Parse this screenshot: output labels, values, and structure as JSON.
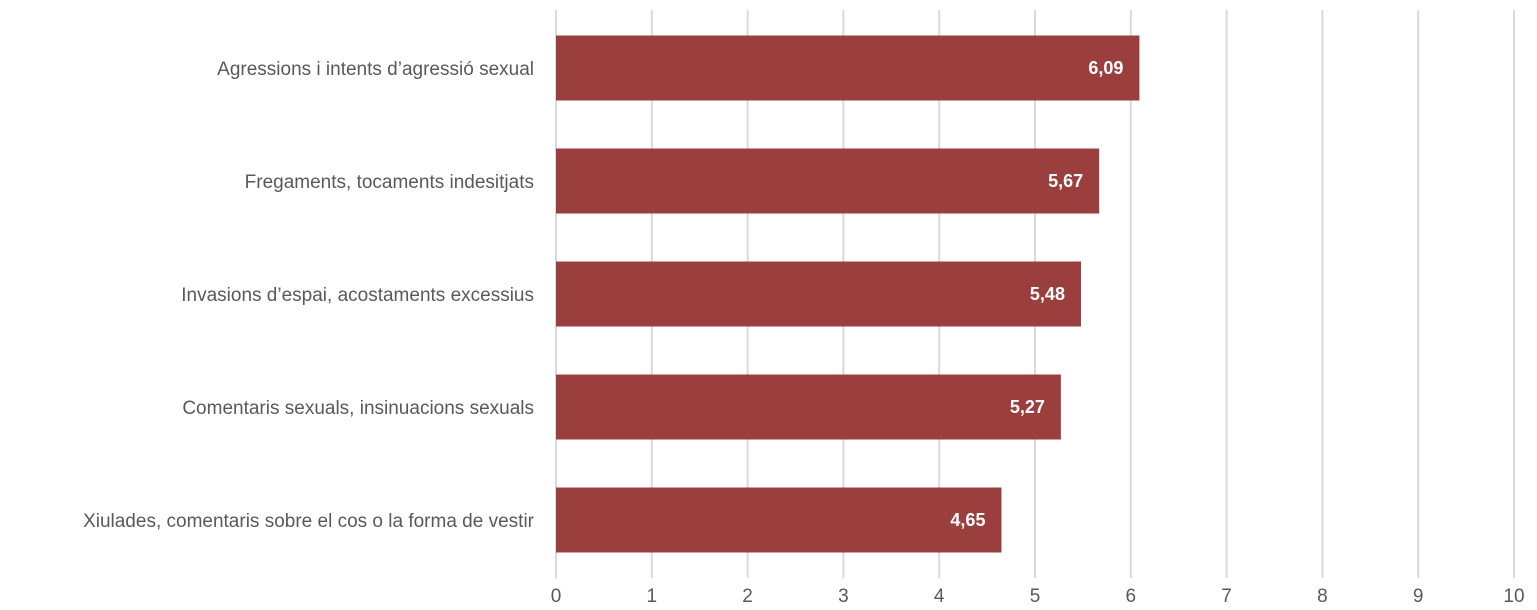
{
  "chart_data": {
    "type": "bar",
    "orientation": "horizontal",
    "categories": [
      "Agressions i intents d’agressió sexual",
      "Fregaments, tocaments indesitjats",
      "Invasions d’espai, acostaments excessius",
      "Comentaris sexuals, insinuacions sexuals",
      "Xiulades, comentaris sobre el cos o la forma de vestir"
    ],
    "values": [
      6.09,
      5.67,
      5.48,
      5.27,
      4.65
    ],
    "data_labels": [
      "6,09",
      "5,67",
      "5,48",
      "5,27",
      "4,65"
    ],
    "xlim": [
      0,
      10
    ],
    "x_ticks": [
      0,
      1,
      2,
      3,
      4,
      5,
      6,
      7,
      8,
      9,
      10
    ],
    "x_tick_labels": [
      "0",
      "1",
      "2",
      "3",
      "4",
      "5",
      "6",
      "7",
      "8",
      "9",
      "10"
    ],
    "grid": "vertical",
    "legend": "none",
    "colors": {
      "bar": "#9b3f3e",
      "grid": "#d9d9d9",
      "text": "#595959",
      "data_label": "#ffffff"
    }
  }
}
